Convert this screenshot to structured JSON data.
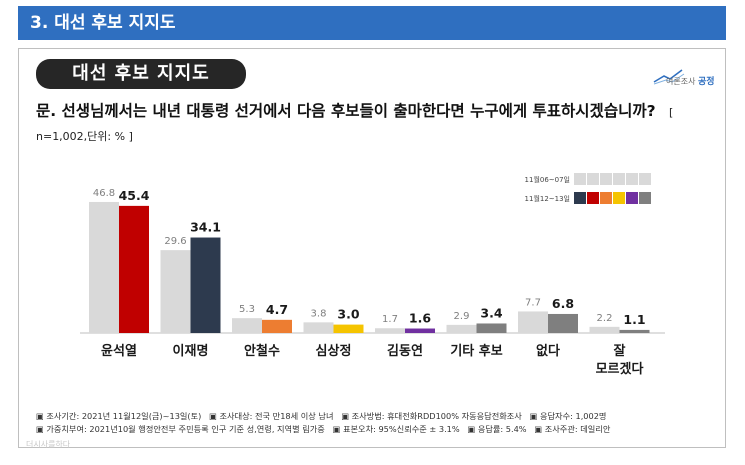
{
  "header": {
    "title": "3. 대선 후보 지지도"
  },
  "badge": {
    "title": "대선 후보 지지도"
  },
  "logo": {
    "label_small": "여론조사",
    "label_brand": "공정"
  },
  "question": {
    "text": "문. 선생님께서는 내년 대통령 선거에서 다음 후보들이 출마한다면 누구에게 투표하시겠습니까?",
    "meta": "[ n=1,002,단위: % ]"
  },
  "chart_data": {
    "type": "bar",
    "categories": [
      "윤석열",
      "이재명",
      "안철수",
      "심상정",
      "김동연",
      "기타 후보",
      "없다",
      "잘 모르겠다"
    ],
    "series": [
      {
        "name": "11월06~07일",
        "values": [
          46.8,
          29.6,
          5.3,
          3.8,
          1.7,
          2.9,
          7.7,
          2.2
        ]
      },
      {
        "name": "11월12~13일",
        "values": [
          45.4,
          34.1,
          4.7,
          3.0,
          1.6,
          3.4,
          6.8,
          1.1
        ]
      }
    ],
    "colors_current": [
      "#c00000",
      "#2d3a4e",
      "#ed7d31",
      "#f5c400",
      "#7030a0",
      "#7f7f7f",
      "#7f7f7f",
      "#7f7f7f"
    ],
    "color_previous": "#d9d9d9",
    "legend_prev_colors": [
      "#d9d9d9",
      "#d9d9d9",
      "#d9d9d9",
      "#d9d9d9",
      "#d9d9d9",
      "#d9d9d9"
    ],
    "legend_curr_colors": [
      "#2d3a4e",
      "#c00000",
      "#ed7d31",
      "#f5c400",
      "#7030a0",
      "#7f7f7f"
    ],
    "ylim": [
      0,
      50
    ],
    "grid": false
  },
  "footer": {
    "line1": [
      "▣ 조사기간: 2021년 11월12일(금)~13일(토)",
      "▣ 조사대상: 전국 만18세 이상 남녀",
      "▣ 조사방법: 휴대전화RDD100% 자동응답전화조사",
      "▣ 응답자수: 1,002명"
    ],
    "line2": [
      "▣ 가중치부여: 2021년10월 행정안전부 주민등록 인구 기준 성,연령, 지역별 림가중",
      "▣ 표본오차: 95%신뢰수준 ± 3.1%",
      "▣ 응답률: 5.4%",
      "▣ 조사주관: 데일리안"
    ]
  },
  "watermark": "더시사를하다"
}
